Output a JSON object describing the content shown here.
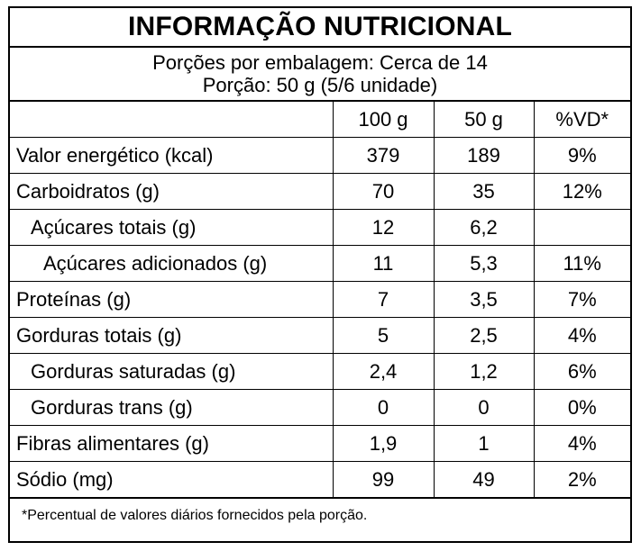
{
  "title": "INFORMAÇÃO NUTRICIONAL",
  "portions": {
    "per_package": "Porções por embalagem: Cerca de 14",
    "portion": "Porção: 50 g (5/6 unidade)"
  },
  "table": {
    "headers": [
      "",
      "100 g",
      "50 g",
      "%VD*"
    ],
    "rows": [
      {
        "name": "Valor energético (kcal)",
        "indent": 0,
        "v100": "379",
        "v50": "189",
        "vd": "9%"
      },
      {
        "name": "Carboidratos (g)",
        "indent": 0,
        "v100": "70",
        "v50": "35",
        "vd": "12%"
      },
      {
        "name": "Açúcares totais (g)",
        "indent": 1,
        "v100": "12",
        "v50": "6,2",
        "vd": ""
      },
      {
        "name": "Açúcares adicionados (g)",
        "indent": 2,
        "v100": "11",
        "v50": "5,3",
        "vd": "11%"
      },
      {
        "name": "Proteínas (g)",
        "indent": 0,
        "v100": "7",
        "v50": "3,5",
        "vd": "7%"
      },
      {
        "name": "Gorduras totais (g)",
        "indent": 0,
        "v100": "5",
        "v50": "2,5",
        "vd": "4%"
      },
      {
        "name": "Gorduras saturadas (g)",
        "indent": 1,
        "v100": "2,4",
        "v50": "1,2",
        "vd": "6%"
      },
      {
        "name": "Gorduras trans (g)",
        "indent": 1,
        "v100": "0",
        "v50": "0",
        "vd": "0%"
      },
      {
        "name": "Fibras alimentares (g)",
        "indent": 0,
        "v100": "1,9",
        "v50": "1",
        "vd": "4%"
      },
      {
        "name": "Sódio (mg)",
        "indent": 0,
        "v100": "99",
        "v50": "49",
        "vd": "2%"
      }
    ]
  },
  "footnote": "*Percentual de valores diários fornecidos pela porção."
}
